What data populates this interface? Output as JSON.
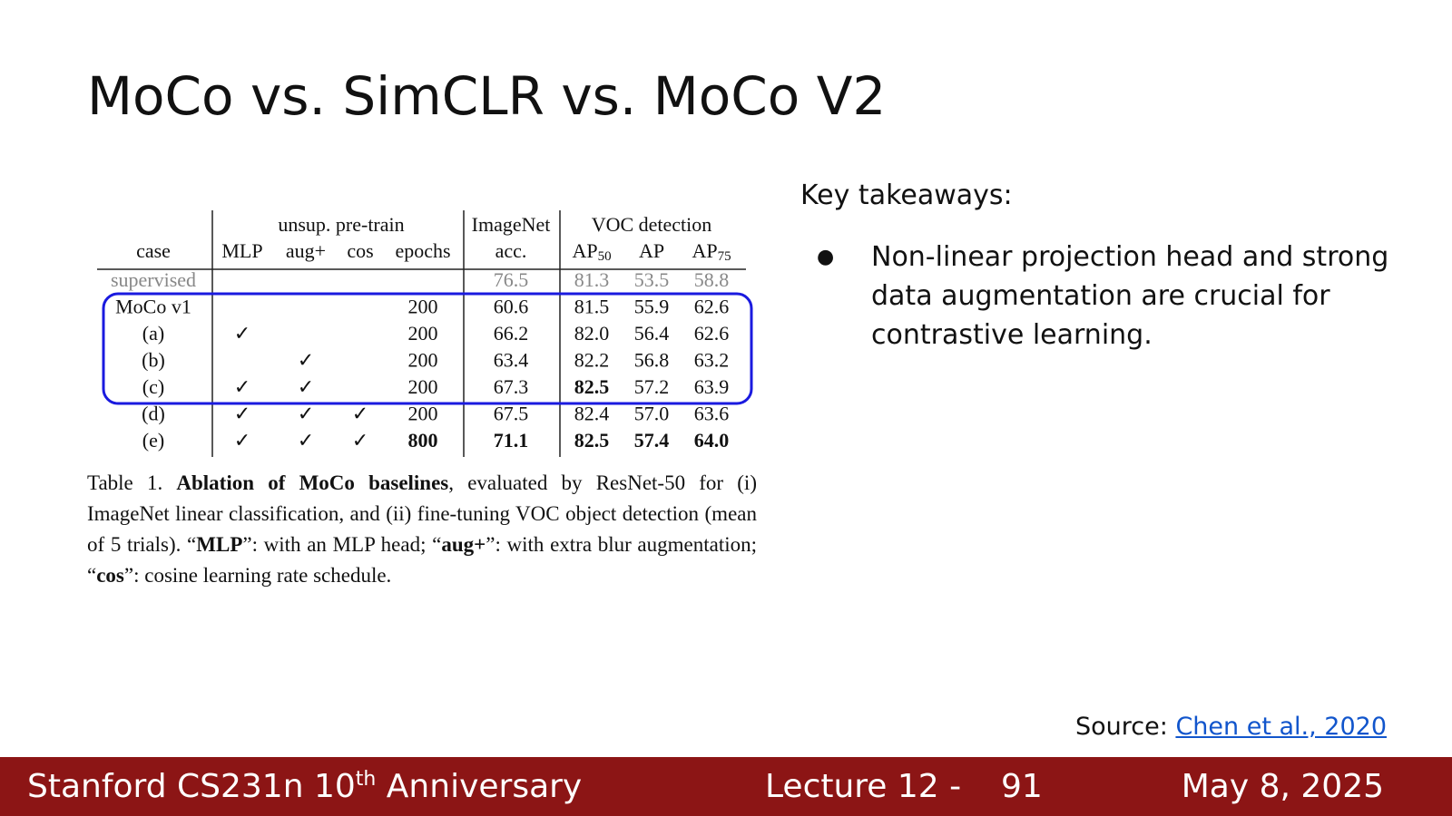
{
  "header": {
    "title": "MoCo vs. SimCLR vs. MoCo V2"
  },
  "table": {
    "group_headers": [
      "unsup. pre-train",
      "ImageNet",
      "VOC detection"
    ],
    "columns": [
      {
        "text": "case"
      },
      {
        "text": "MLP"
      },
      {
        "text": "aug+"
      },
      {
        "text": "cos"
      },
      {
        "text": "epochs"
      },
      {
        "text": "acc."
      },
      {
        "text": "AP",
        "sub": "50"
      },
      {
        "text": "AP"
      },
      {
        "text": "AP",
        "sub": "75"
      }
    ],
    "rows": [
      {
        "cells": [
          "supervised",
          null,
          null,
          null,
          null,
          "76.5",
          "81.3",
          "53.5",
          "58.8"
        ],
        "muted": true
      },
      {
        "cells": [
          "MoCo v1",
          null,
          null,
          null,
          "200",
          "60.6",
          "81.5",
          "55.9",
          "62.6"
        ]
      },
      {
        "cells": [
          "(a)",
          "✓",
          null,
          null,
          "200",
          "66.2",
          "82.0",
          "56.4",
          "62.6"
        ]
      },
      {
        "cells": [
          "(b)",
          null,
          "✓",
          null,
          "200",
          "63.4",
          "82.2",
          "56.8",
          "63.2"
        ]
      },
      {
        "cells": [
          "(c)",
          "✓",
          "✓",
          null,
          "200",
          "67.3",
          "82.5",
          "57.2",
          "63.9"
        ],
        "bold": [
          6
        ]
      },
      {
        "cells": [
          "(d)",
          "✓",
          "✓",
          "✓",
          "200",
          "67.5",
          "82.4",
          "57.0",
          "63.6"
        ]
      },
      {
        "cells": [
          "(e)",
          "✓",
          "✓",
          "✓",
          "800",
          "71.1",
          "82.5",
          "57.4",
          "64.0"
        ],
        "bold": [
          4,
          5,
          6,
          7,
          8
        ]
      }
    ],
    "caption": [
      {
        "text": "Table 1. "
      },
      {
        "text": "Ablation of MoCo baselines",
        "bold": true
      },
      {
        "text": ", evaluated by ResNet-50 for (i) ImageNet linear classification, and (ii) fine-tuning VOC object detection (mean of 5 trials). “"
      },
      {
        "text": "MLP",
        "bold": true
      },
      {
        "text": "”: with an MLP head; “"
      },
      {
        "text": "aug+",
        "bold": true
      },
      {
        "text": "”: with extra blur augmentation; “"
      },
      {
        "text": "cos",
        "bold": true
      },
      {
        "text": "”: cosine learning rate schedule."
      }
    ]
  },
  "takeaways": {
    "heading": "Key takeaways:",
    "bullets": [
      "Non-linear projection head and strong data augmentation are crucial for contrastive learning."
    ]
  },
  "source": {
    "label": "Source:",
    "link": "Chen et al., 2020"
  },
  "footer": {
    "course": "Stanford CS231n 10",
    "sup": "th",
    "course_rest": " Anniversary",
    "lecture": "Lecture 12 -",
    "page": "91",
    "date": "May 8, 2025"
  }
}
